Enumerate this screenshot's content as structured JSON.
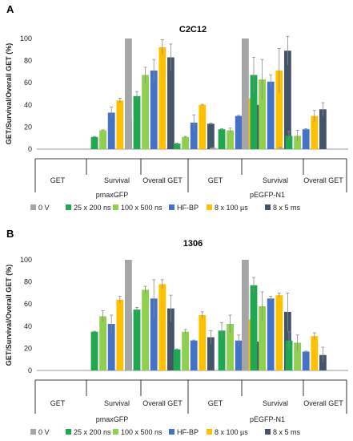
{
  "colors": {
    "0 V": "#a6a6a6",
    "25 x 200 ns": "#1fa84f",
    "100 x 500 ns": "#8fd14f",
    "HF-BP": "#4472c4",
    "8 x 100 µs": "#ffc000",
    "8 x 5 ms": "#44546a"
  },
  "chart_data": [
    {
      "type": "bar",
      "panel": "A",
      "title": "C2C12",
      "ylabel": "GET/Survival/Overall GET (%)",
      "ylim": [
        0,
        100
      ],
      "yticks": [
        0,
        20,
        40,
        60,
        80,
        100
      ],
      "grid": false,
      "legend": "bottom",
      "plasmids": [
        "pmaxGFP",
        "pEGFP-N1"
      ],
      "categories": [
        "GET",
        "Survival",
        "Overall GET",
        "GET",
        "Survival",
        "Overall GET"
      ],
      "series": [
        {
          "name": "0 V",
          "values": [
            0,
            100,
            0,
            1,
            100,
            1
          ],
          "errors": [
            0,
            0,
            0,
            0.5,
            0,
            0.5
          ]
        },
        {
          "name": "25 x 200 ns",
          "values": [
            11,
            48,
            5,
            18,
            67,
            12
          ],
          "errors": [
            0.5,
            4,
            0.5,
            0.5,
            16,
            4
          ]
        },
        {
          "name": "100 x 500 ns",
          "values": [
            17,
            67,
            11,
            17,
            63,
            12
          ],
          "errors": [
            0.5,
            7,
            0.5,
            2,
            18,
            5
          ]
        },
        {
          "name": "HF-BP",
          "values": [
            33,
            71,
            24,
            30,
            61,
            18
          ],
          "errors": [
            5,
            10,
            7,
            0.5,
            6,
            0.5
          ]
        },
        {
          "name": "8 x 100 µs",
          "values": [
            44,
            92,
            40,
            46,
            71,
            30
          ],
          "errors": [
            2,
            7,
            0.5,
            20,
            20,
            5
          ]
        },
        {
          "name": "8 x 5 ms",
          "values": [
            28,
            83,
            23,
            40,
            89,
            36
          ],
          "errors": [
            0.5,
            12,
            0.5,
            7,
            13,
            6
          ]
        }
      ]
    },
    {
      "type": "bar",
      "panel": "B",
      "title": "1306",
      "ylabel": "GET/Survival/Overall GET (%)",
      "ylim": [
        0,
        100
      ],
      "yticks": [
        0,
        20,
        40,
        60,
        80,
        100
      ],
      "grid": false,
      "legend": "bottom",
      "plasmids": [
        "pmaxGFP",
        "pEGFP-N1"
      ],
      "categories": [
        "GET",
        "Survival",
        "Overall GET",
        "GET",
        "Survival",
        "Overall GET"
      ],
      "series": [
        {
          "name": "0 V",
          "values": [
            0,
            100,
            0,
            0,
            100,
            0
          ],
          "errors": [
            0,
            0,
            0,
            0,
            0,
            0
          ]
        },
        {
          "name": "25 x 200 ns",
          "values": [
            35,
            55,
            19,
            36,
            77,
            27
          ],
          "errors": [
            0.5,
            2,
            0.5,
            7,
            7,
            8
          ]
        },
        {
          "name": "100 x 500 ns",
          "values": [
            49,
            73,
            35,
            42,
            58,
            25
          ],
          "errors": [
            5,
            3,
            2,
            8,
            13,
            7
          ]
        },
        {
          "name": "HF-BP",
          "values": [
            42,
            65,
            27,
            27,
            65,
            17
          ],
          "errors": [
            8,
            17,
            0.5,
            5,
            2,
            0.5
          ]
        },
        {
          "name": "8 x 100 µs",
          "values": [
            64,
            78,
            50,
            46,
            68,
            31
          ],
          "errors": [
            3,
            4,
            3,
            5,
            2,
            3
          ]
        },
        {
          "name": "8 x 5 ms",
          "values": [
            52,
            56,
            30,
            26,
            53,
            14
          ],
          "errors": [
            0.5,
            12,
            6,
            7,
            17,
            7
          ]
        }
      ]
    }
  ]
}
